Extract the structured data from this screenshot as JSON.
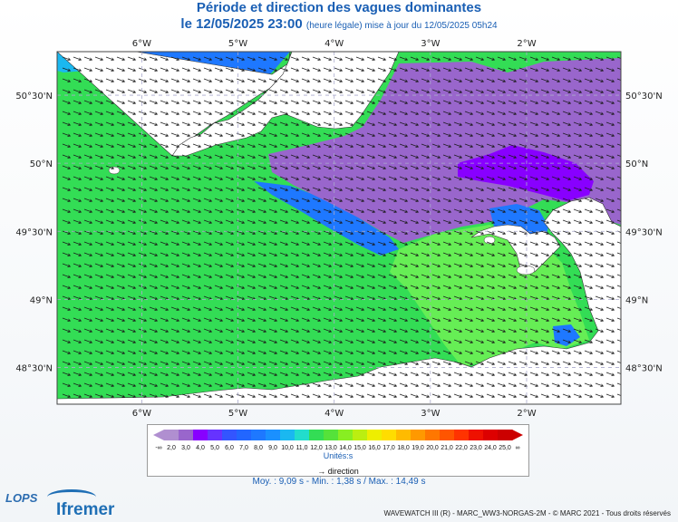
{
  "title": {
    "line1": "Période et direction des vagues dominantes",
    "line2_main": "le 12/05/2025 23:00",
    "line2_note": "(heure légale) mise à jour du 12/05/2025 05h24"
  },
  "map": {
    "lon_ticks": [
      "6°W",
      "5°W",
      "4°W",
      "3°W",
      "2°W"
    ],
    "lat_ticks": [
      "50°30'N",
      "50°N",
      "49°30'N",
      "49°N",
      "48°30'N"
    ],
    "lon_values": [
      -6,
      -5,
      -4,
      -3,
      -2
    ],
    "lat_values": [
      50.5,
      50.0,
      49.5,
      49.0,
      48.5
    ],
    "extent": {
      "lon_min": -6.88,
      "lon_max": -1.02,
      "lat_min": 48.23,
      "lat_max": 50.82
    },
    "arrow_direction_deg": 110,
    "colors": {
      "green": "#33dd55",
      "light_green": "#66ee55",
      "blue": "#1e78ff",
      "light_blue": "#1ab8f0",
      "purple": "#9966cc",
      "violet": "#8800ff",
      "land": "#ffffff"
    }
  },
  "legend": {
    "ticks": [
      "2,0",
      "3,0",
      "4,0",
      "5,0",
      "6,0",
      "7,0",
      "8,0",
      "9,0",
      "10,0",
      "11,0",
      "12,0",
      "13,0",
      "14,0",
      "15,0",
      "16,0",
      "17,0",
      "18,0",
      "19,0",
      "20,0",
      "21,0",
      "22,0",
      "23,0",
      "24,0",
      "25,0"
    ],
    "colors": [
      "#b08fd0",
      "#9966cc",
      "#8800ff",
      "#6633ff",
      "#3355ff",
      "#2266ff",
      "#1e78ff",
      "#1a90ff",
      "#1ab8f0",
      "#22ddcc",
      "#33dd55",
      "#55e23a",
      "#88ee22",
      "#bbee11",
      "#eeee00",
      "#ffdd00",
      "#ffbb00",
      "#ff9900",
      "#ff7700",
      "#ff5500",
      "#ff3300",
      "#ee1100",
      "#dd0000",
      "#cc0000"
    ],
    "low_label": "-∞",
    "high_label": "∞",
    "unit": "Unités:s",
    "direction_label": "direction"
  },
  "stats": "Moy. : 9,09 s   -   Min. : 1,38 s / Max. : 14,49 s",
  "credit": "WAVEWATCH III (R) - MARC_WW3-NORGAS-2M - © MARC 2021 - Tous droits réservés",
  "logos": {
    "lops": "LOPS",
    "ifremer": "Ifremer"
  }
}
